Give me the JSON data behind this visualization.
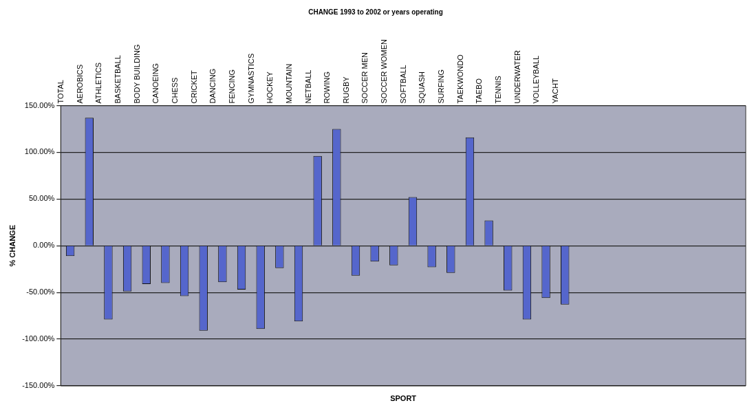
{
  "chart_data": {
    "type": "bar",
    "title": "CHANGE 1993 to 2002 or years operating",
    "xlabel": "SPORT",
    "ylabel": "% CHANGE",
    "categories": [
      "TOTAL",
      "AEROBICS",
      "ATHLETICS",
      "BASKETBALL",
      "BODY BUILDING",
      "CANOEING",
      "CHESS",
      "CRICKET",
      "DANCING",
      "FENCING",
      "GYMNASTICS",
      "HOCKEY",
      "MOUNTAIN",
      "NETBALL",
      "ROWING",
      "RUGBY",
      "SOCCER MEN",
      "SOCCER WOMEN",
      "SOFTBALL",
      "SQUASH",
      "SURFING",
      "TAEKWONDO",
      "TAEBO",
      "TENNIS",
      "UNDERWATER",
      "VOLLEYBALL",
      "YACHT",
      null,
      null,
      null,
      null,
      null,
      null,
      null,
      null,
      null
    ],
    "values": [
      -11,
      137,
      -79,
      -49,
      -41,
      -40,
      -54,
      -91,
      -39,
      -47,
      -89,
      -24,
      -81,
      96,
      125,
      -32,
      -17,
      -21,
      52,
      -23,
      -29,
      116,
      27,
      -48,
      -79,
      -56,
      -63,
      null,
      null,
      null,
      null,
      null,
      null,
      null,
      null,
      null
    ],
    "color": "#5566cc",
    "ylim": [
      -150,
      150
    ],
    "yticks": [
      {
        "value": -150,
        "label": "-150.00%"
      },
      {
        "value": -100,
        "label": "-100.00%"
      },
      {
        "value": -50,
        "label": "-50.00%"
      },
      {
        "value": 0,
        "label": "0.00%"
      },
      {
        "value": 50,
        "label": "50.00%"
      },
      {
        "value": 100,
        "label": "100.00%"
      },
      {
        "value": 150,
        "label": "150.00%"
      }
    ],
    "grid": "y",
    "legend": false
  }
}
